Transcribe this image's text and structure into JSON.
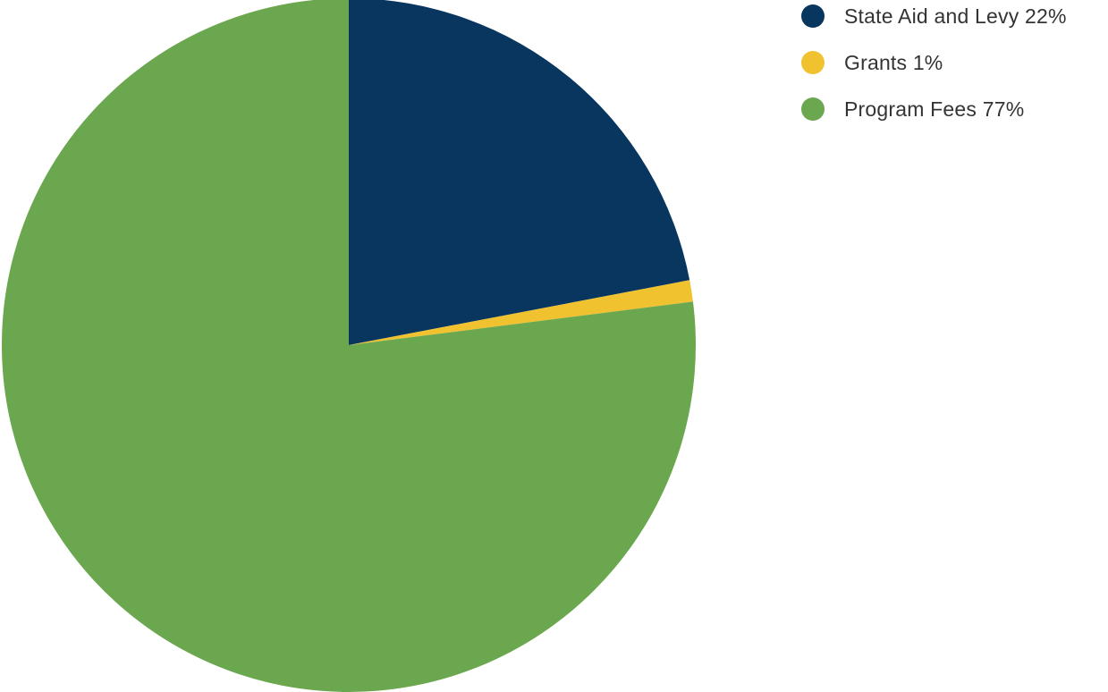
{
  "chart_data": {
    "type": "pie",
    "title": "",
    "categories": [
      "State Aid and Levy",
      "Grants",
      "Program Fees"
    ],
    "values": [
      22,
      1,
      77
    ],
    "unit": "%",
    "colors": [
      "#08365f",
      "#f0c230",
      "#6ba74f"
    ],
    "legend_position": "top-right",
    "start_angle": "12 o'clock",
    "direction": "clockwise"
  },
  "legend": {
    "items": [
      {
        "label": "State Aid and Levy 22%",
        "color": "#08365f"
      },
      {
        "label": "Grants 1%",
        "color": "#f0c230"
      },
      {
        "label": "Program Fees 77%",
        "color": "#6ba74f"
      }
    ]
  }
}
